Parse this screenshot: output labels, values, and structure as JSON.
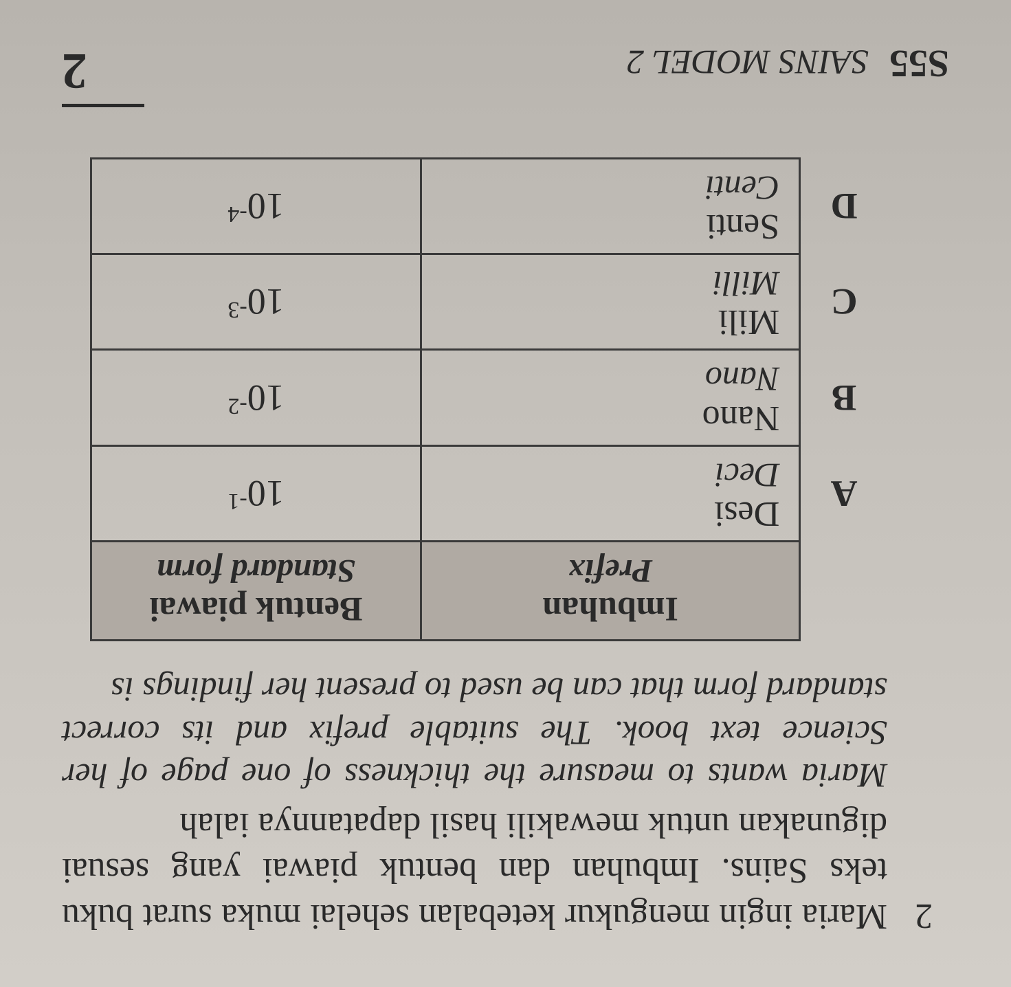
{
  "question": {
    "number": "2",
    "text_ms": "Maria ingin mengukur ketebalan sehelai muka surat buku teks Sains. Imbuhan dan bentuk piawai yang sesuai digunakan untuk mewakili hasil dapatannya ialah",
    "text_en": "Maria wants to measure the thickness of one page of her Science text book. The suitable prefix and its correct standard form that can be used to present her findings is"
  },
  "table": {
    "headers": {
      "prefix_ms": "Imbuhan",
      "prefix_en": "Prefix",
      "form_ms": "Bentuk piawai",
      "form_en": "Standard form"
    },
    "options": [
      {
        "label": "A",
        "prefix_ms": "Desi",
        "prefix_en": "Deci",
        "base": "10",
        "exp": "-1"
      },
      {
        "label": "B",
        "prefix_ms": "Nano",
        "prefix_en": "Nano",
        "base": "10",
        "exp": "-2"
      },
      {
        "label": "C",
        "prefix_ms": "Mili",
        "prefix_en": "Milli",
        "base": "10",
        "exp": "-3"
      },
      {
        "label": "D",
        "prefix_ms": "Senti",
        "prefix_en": "Centi",
        "base": "10",
        "exp": "-4"
      }
    ]
  },
  "footer": {
    "code": "S55",
    "title": "SAINS MODEL 2",
    "page": "2"
  }
}
